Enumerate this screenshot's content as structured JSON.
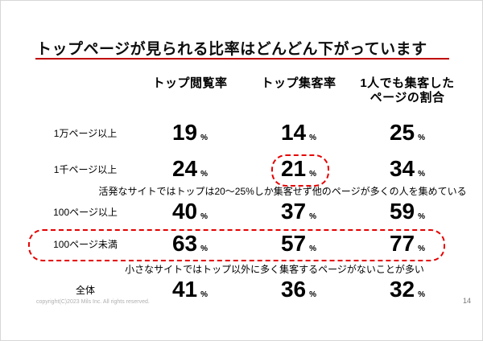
{
  "slide": {
    "title": "トップページが見られる比率はどんどん下がっています",
    "footer": {
      "copyright": "copyright(C)2023 Mils Inc. All rights reserved.",
      "page_number": "14"
    }
  },
  "table": {
    "column_headers": [
      "トップ閲覧率",
      "トップ集客率",
      "1人でも集客した\nページの割合"
    ],
    "percent_sign": "%",
    "rows": [
      {
        "label": "1万ページ以上",
        "values": [
          "19",
          "14",
          "25"
        ]
      },
      {
        "label": "1千ページ以上",
        "values": [
          "24",
          "21",
          "34"
        ]
      },
      {
        "label": "100ページ以上",
        "values": [
          "40",
          "37",
          "59"
        ]
      },
      {
        "label": "100ページ未満",
        "values": [
          "63",
          "57",
          "77"
        ]
      },
      {
        "label": "全体",
        "values": [
          "41",
          "36",
          "32"
        ]
      }
    ]
  },
  "annotations": {
    "active_sites": "活発なサイトではトップは20〜25%しか集客せず他のページが多くの人を集めている",
    "small_sites": "小さなサイトではトップ以外に多く集客するページがないことが多い"
  },
  "colors": {
    "accent_red": "#c00000",
    "highlight_red": "#e60000"
  }
}
